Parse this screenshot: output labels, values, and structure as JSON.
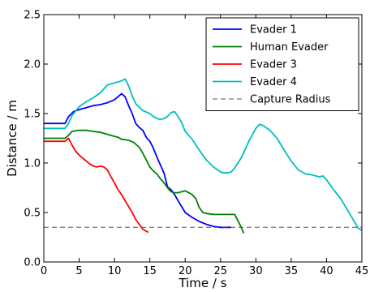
{
  "chart_data": {
    "type": "line",
    "title": "",
    "xlabel": "Time / s",
    "ylabel": "Distance / m",
    "xlim": [
      0,
      45
    ],
    "ylim": [
      0.0,
      2.5
    ],
    "xticks": [
      0,
      5,
      10,
      15,
      20,
      25,
      30,
      35,
      40,
      45
    ],
    "yticks": [
      0.0,
      0.5,
      1.0,
      1.5,
      2.0,
      2.5
    ],
    "xtick_labels": [
      "0",
      "5",
      "10",
      "15",
      "20",
      "25",
      "30",
      "35",
      "40",
      "45"
    ],
    "ytick_labels": [
      "0.0",
      "0.5",
      "1.0",
      "1.5",
      "2.0",
      "2.5"
    ],
    "grid": false,
    "legend_position": "top-right",
    "series": [
      {
        "name": "Evader 1",
        "color": "#0000ff",
        "x": [
          0,
          3,
          3.5,
          4.2,
          5,
          6,
          7,
          8,
          9,
          10,
          11,
          11.5,
          12,
          12.5,
          13,
          13.5,
          14,
          14.5,
          15,
          15.5,
          16,
          16.5,
          17,
          17.5,
          18,
          18.5,
          19,
          19.5,
          20,
          21,
          22,
          23,
          24,
          25,
          26,
          26.5
        ],
        "y": [
          1.4,
          1.4,
          1.47,
          1.52,
          1.54,
          1.56,
          1.58,
          1.59,
          1.61,
          1.64,
          1.7,
          1.67,
          1.58,
          1.5,
          1.4,
          1.36,
          1.33,
          1.26,
          1.22,
          1.15,
          1.06,
          0.98,
          0.9,
          0.76,
          0.73,
          0.68,
          0.62,
          0.56,
          0.5,
          0.45,
          0.41,
          0.38,
          0.36,
          0.35,
          0.35,
          0.35
        ]
      },
      {
        "name": "Human Evader",
        "color": "#008000",
        "x": [
          0,
          3,
          3.5,
          4,
          4.8,
          6,
          7,
          8,
          9,
          10,
          10.5,
          11,
          12,
          12.7,
          13.5,
          14,
          14.5,
          15,
          15.5,
          16,
          16.5,
          17,
          17.5,
          18,
          18.5,
          19,
          19.5,
          20,
          20.5,
          21,
          21.5,
          22,
          22.5,
          23,
          24,
          25,
          26,
          27,
          27.6,
          28.3
        ],
        "y": [
          1.25,
          1.25,
          1.28,
          1.32,
          1.33,
          1.33,
          1.32,
          1.31,
          1.29,
          1.27,
          1.26,
          1.24,
          1.23,
          1.21,
          1.16,
          1.1,
          1.03,
          0.96,
          0.92,
          0.89,
          0.84,
          0.8,
          0.75,
          0.71,
          0.7,
          0.7,
          0.71,
          0.72,
          0.7,
          0.68,
          0.64,
          0.55,
          0.5,
          0.49,
          0.48,
          0.48,
          0.48,
          0.48,
          0.4,
          0.29
        ]
      },
      {
        "name": "Evader 3",
        "color": "#ff0000",
        "x": [
          0,
          3,
          3.5,
          4,
          4.5,
          5,
          5.5,
          6,
          6.5,
          7,
          7.5,
          8,
          8.5,
          9,
          9.5,
          10,
          10.5,
          11,
          11.5,
          12,
          12.5,
          13,
          13.5,
          14,
          14.8
        ],
        "y": [
          1.22,
          1.22,
          1.25,
          1.18,
          1.12,
          1.08,
          1.05,
          1.02,
          0.99,
          0.97,
          0.96,
          0.97,
          0.96,
          0.93,
          0.86,
          0.8,
          0.73,
          0.68,
          0.62,
          0.56,
          0.5,
          0.43,
          0.38,
          0.33,
          0.3
        ]
      },
      {
        "name": "Evader 4",
        "color": "#00bfbf",
        "x": [
          0,
          3,
          3.5,
          4,
          5,
          6,
          7,
          8,
          9,
          10,
          10.5,
          11,
          11.5,
          12,
          12.5,
          13,
          14,
          15,
          15.5,
          16,
          16.5,
          17,
          17.5,
          18,
          18.5,
          19,
          19.5,
          20,
          21,
          22,
          23,
          24,
          25,
          25.5,
          26,
          26.5,
          27,
          28,
          29,
          30,
          30.5,
          31,
          32,
          33,
          34,
          35,
          36,
          37,
          38,
          39,
          39.5,
          40,
          41,
          42,
          43,
          44,
          44.5,
          45
        ],
        "y": [
          1.35,
          1.35,
          1.4,
          1.48,
          1.57,
          1.62,
          1.66,
          1.71,
          1.79,
          1.81,
          1.82,
          1.83,
          1.85,
          1.78,
          1.68,
          1.6,
          1.53,
          1.5,
          1.47,
          1.45,
          1.44,
          1.45,
          1.47,
          1.51,
          1.52,
          1.47,
          1.41,
          1.32,
          1.24,
          1.13,
          1.03,
          0.96,
          0.91,
          0.9,
          0.9,
          0.91,
          0.95,
          1.06,
          1.22,
          1.35,
          1.39,
          1.38,
          1.33,
          1.25,
          1.13,
          1.02,
          0.93,
          0.89,
          0.88,
          0.86,
          0.87,
          0.83,
          0.73,
          0.64,
          0.52,
          0.4,
          0.34,
          0.32
        ]
      },
      {
        "name": "Capture Radius",
        "color": "#555555",
        "dashed": true,
        "x": [
          0,
          45
        ],
        "y": [
          0.35,
          0.35
        ]
      }
    ]
  }
}
